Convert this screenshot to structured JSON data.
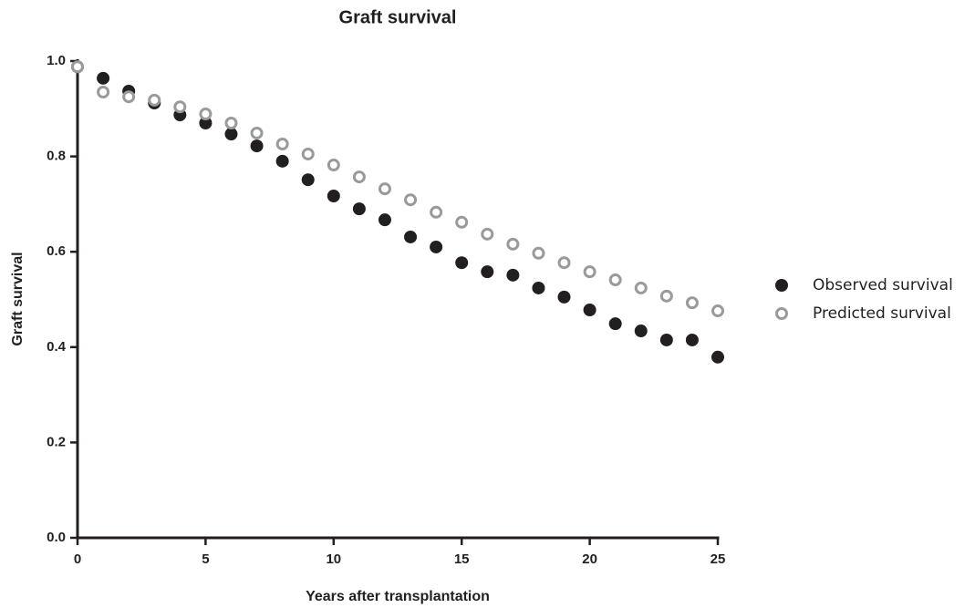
{
  "chart_data": {
    "type": "scatter",
    "title": "Graft survival",
    "x_label": "Years after transplantation",
    "y_label": "Graft survival",
    "x": [
      0,
      1,
      2,
      3,
      4,
      5,
      6,
      7,
      8,
      9,
      10,
      11,
      12,
      13,
      14,
      15,
      16,
      17,
      18,
      19,
      20,
      21,
      22,
      23,
      24,
      25
    ],
    "series": [
      {
        "name": "Observed survival",
        "color": "#231f20",
        "marker": "filled",
        "values": [
          0.988,
          0.964,
          0.937,
          0.912,
          0.887,
          0.87,
          0.847,
          0.822,
          0.79,
          0.751,
          0.717,
          0.69,
          0.667,
          0.631,
          0.61,
          0.577,
          0.558,
          0.551,
          0.524,
          0.505,
          0.478,
          0.449,
          0.434,
          0.415,
          0.415,
          0.379
        ]
      },
      {
        "name": "Predicted survival",
        "color": "#9a9a9a",
        "marker": "hollow",
        "values": [
          0.988,
          0.935,
          0.925,
          0.918,
          0.904,
          0.889,
          0.87,
          0.849,
          0.826,
          0.805,
          0.782,
          0.757,
          0.732,
          0.709,
          0.683,
          0.662,
          0.637,
          0.616,
          0.597,
          0.577,
          0.558,
          0.541,
          0.524,
          0.507,
          0.493,
          0.476
        ]
      }
    ],
    "xlim": [
      0,
      25
    ],
    "xticks": [
      0,
      5,
      10,
      15,
      20,
      25
    ],
    "ylim": [
      0,
      1
    ],
    "yticks": [
      {
        "value": 0,
        "label": "0.0"
      },
      {
        "value": 0.2,
        "label": "0.2"
      },
      {
        "value": 0.4,
        "label": "0.4"
      },
      {
        "value": 0.6,
        "label": "0.6"
      },
      {
        "value": 0.8,
        "label": "0.8"
      },
      {
        "value": 1,
        "label": "1.0"
      }
    ],
    "grid": false,
    "legend": "right"
  }
}
